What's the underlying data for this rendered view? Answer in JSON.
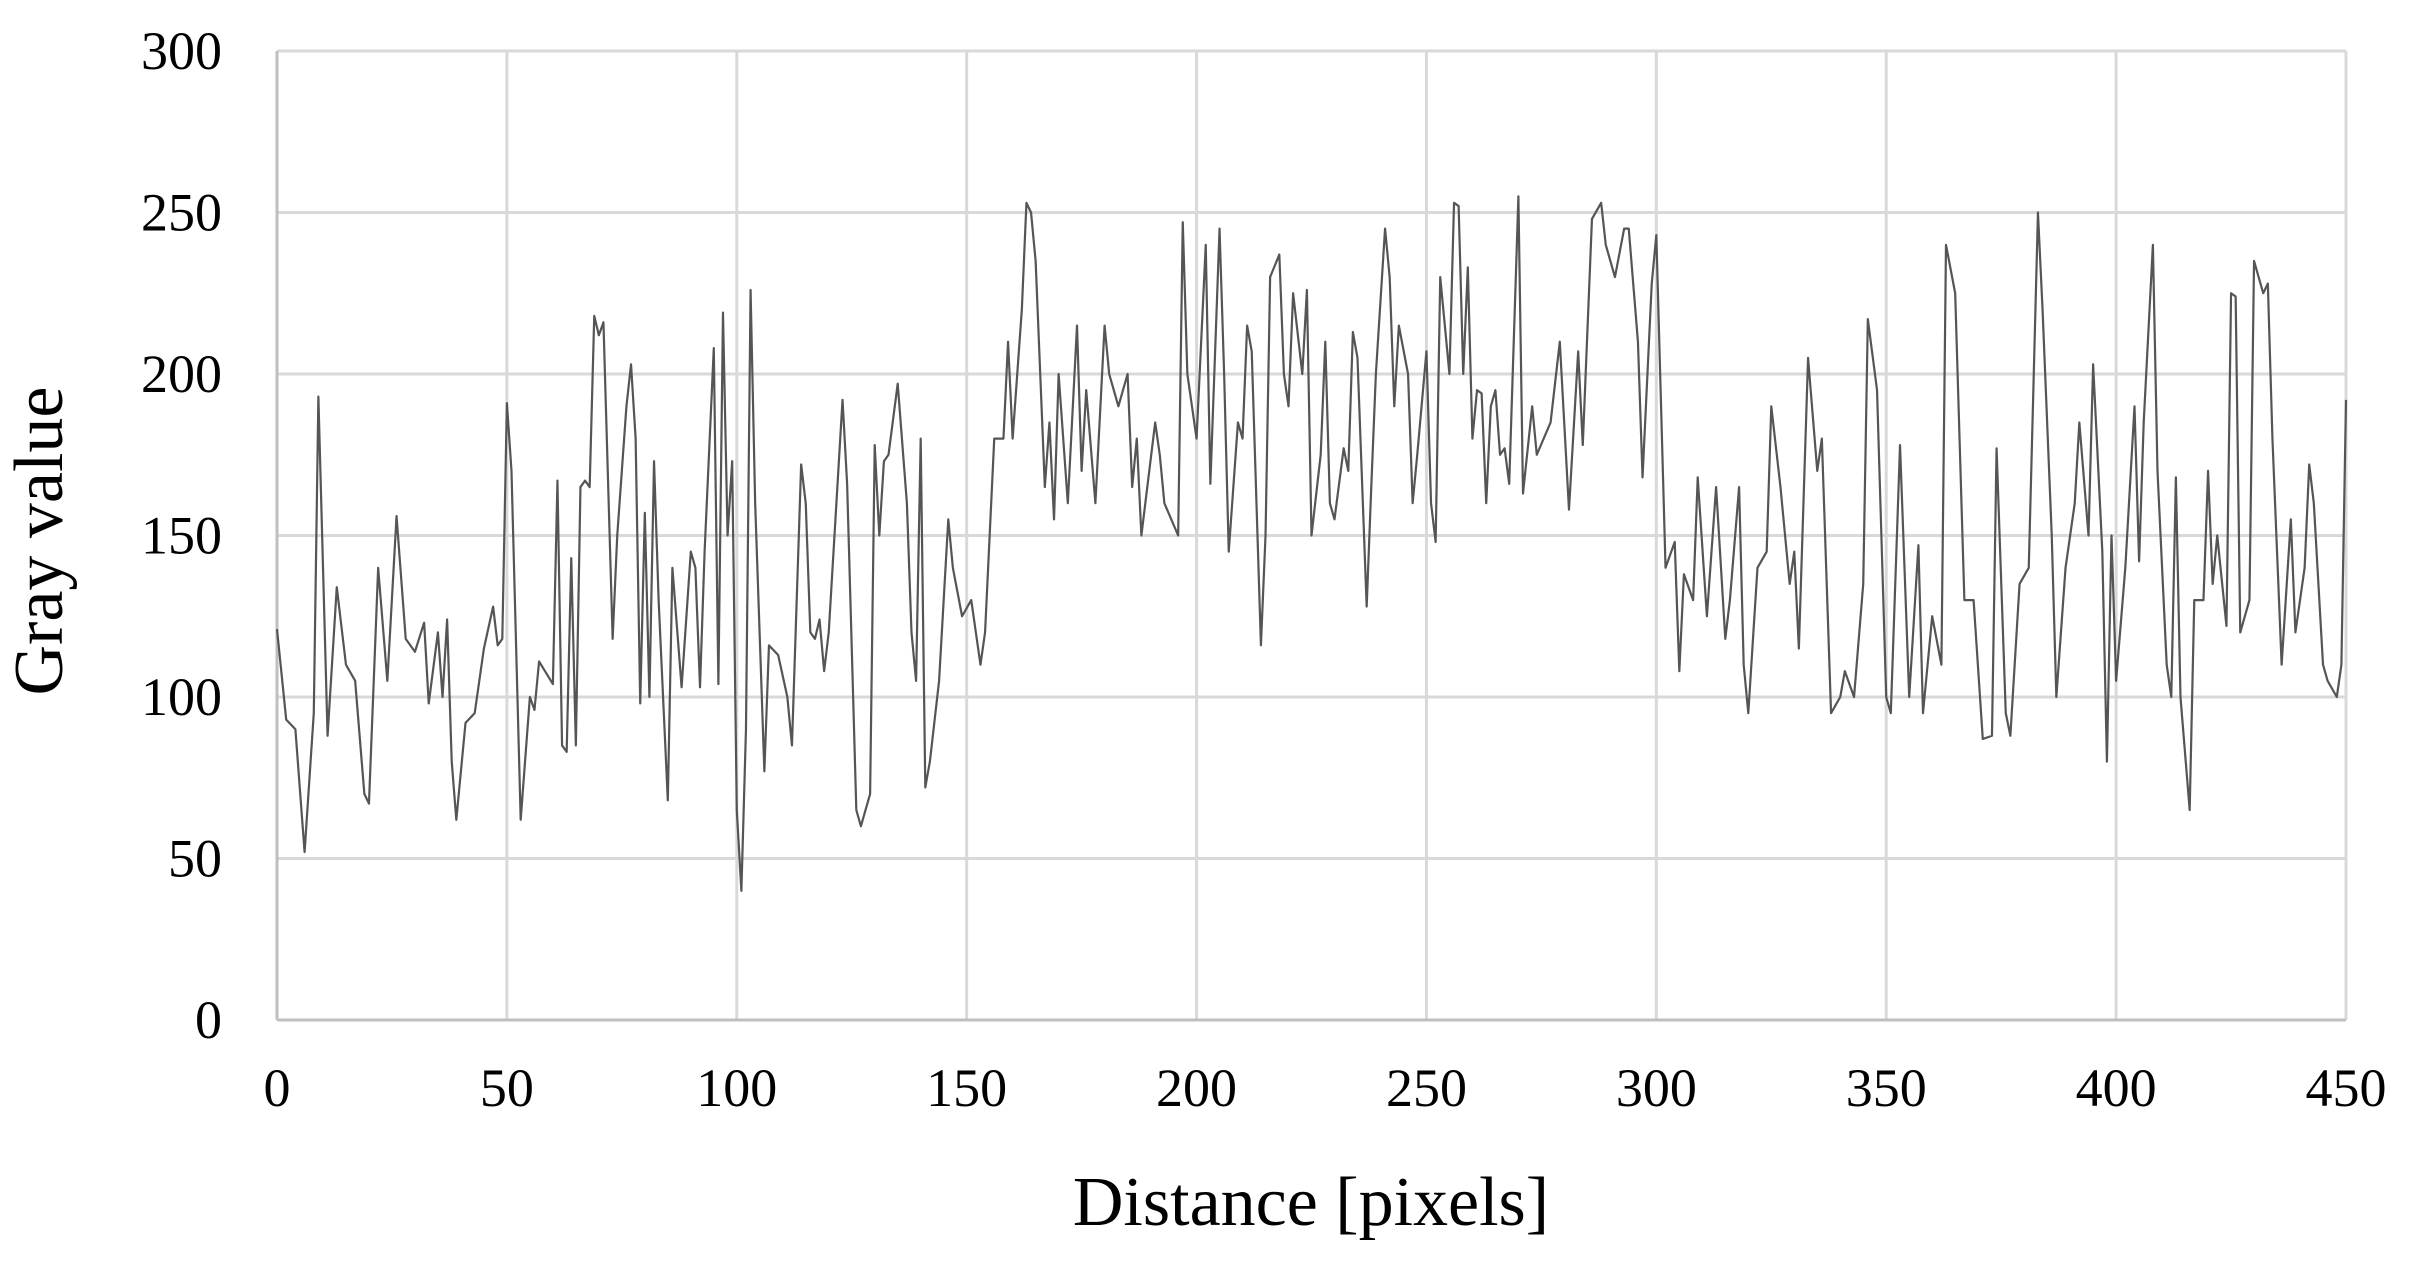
{
  "chart_data": {
    "type": "line",
    "xlabel": "Distance [pixels]",
    "ylabel": "Gray value",
    "color": "#555555",
    "grid": true,
    "xlim": [
      0,
      450
    ],
    "xticks": [
      0,
      50,
      100,
      150,
      200,
      250,
      300,
      350,
      400,
      450
    ],
    "ylim": [
      0,
      300
    ],
    "yticks": [
      0,
      50,
      100,
      150,
      200,
      250,
      300
    ],
    "x": [
      0,
      2,
      4,
      6,
      8,
      9,
      11,
      13,
      15,
      17,
      19,
      20,
      22,
      24,
      26,
      28,
      30,
      32,
      33,
      35,
      36,
      37,
      38,
      39,
      41,
      43,
      45,
      47,
      48,
      49,
      50,
      51,
      53,
      55,
      56,
      57,
      60,
      61,
      62,
      63,
      64,
      65,
      66,
      67,
      68,
      69,
      70,
      71,
      73,
      74,
      76,
      77,
      78,
      79,
      80,
      81,
      82,
      83,
      85,
      86,
      88,
      90,
      91,
      92,
      93,
      95,
      96,
      97,
      98,
      99,
      100,
      101,
      102,
      103,
      104,
      106,
      107,
      109,
      111,
      112,
      114,
      115,
      116,
      117,
      118,
      119,
      120,
      123,
      124,
      126,
      127,
      129,
      130,
      131,
      132,
      133,
      135,
      137,
      138,
      139,
      140,
      141,
      142,
      144,
      146,
      147,
      149,
      151,
      153,
      154,
      156,
      158,
      159,
      160,
      162,
      163,
      164,
      165,
      167,
      168,
      169,
      170,
      172,
      174,
      175,
      176,
      178,
      180,
      181,
      183,
      185,
      186,
      187,
      188,
      191,
      192,
      193,
      196,
      197,
      198,
      200,
      202,
      203,
      205,
      206,
      207,
      209,
      210,
      211,
      212,
      214,
      215,
      216,
      218,
      219,
      220,
      221,
      223,
      224,
      225,
      227,
      228,
      229,
      230,
      232,
      233,
      234,
      235,
      237,
      238,
      239,
      241,
      242,
      243,
      244,
      246,
      247,
      248,
      250,
      251,
      252,
      253,
      255,
      256,
      257,
      258,
      259,
      260,
      261,
      262,
      263,
      264,
      265,
      266,
      267,
      268,
      270,
      271,
      273,
      274,
      277,
      279,
      281,
      283,
      284,
      286,
      288,
      289,
      291,
      293,
      294,
      296,
      297,
      299,
      300,
      302,
      304,
      305,
      306,
      308,
      309,
      311,
      313,
      315,
      316,
      318,
      319,
      320,
      322,
      324,
      325,
      327,
      329,
      330,
      331,
      333,
      335,
      336,
      338,
      340,
      341,
      343,
      345,
      346,
      348,
      350,
      351,
      353,
      355,
      357,
      358,
      360,
      362,
      363,
      365,
      367,
      369,
      371,
      373,
      374,
      376,
      377,
      379,
      381,
      383,
      384,
      386,
      387,
      389,
      391,
      392,
      394,
      395,
      397,
      398,
      399,
      400,
      402,
      404,
      405,
      406,
      408,
      409,
      411,
      412,
      413,
      414,
      416,
      417,
      419,
      420,
      421,
      422,
      424,
      425,
      426,
      427,
      429,
      430,
      432,
      433,
      434,
      436,
      438,
      439,
      441,
      442,
      443,
      445,
      446,
      448,
      449,
      450
    ],
    "values": [
      121,
      93,
      90,
      52,
      95,
      193,
      88,
      134,
      110,
      105,
      70,
      67,
      140,
      105,
      156,
      118,
      114,
      123,
      98,
      120,
      100,
      124,
      80,
      62,
      92,
      95,
      115,
      128,
      116,
      118,
      191,
      170,
      62,
      100,
      96,
      111,
      104,
      167,
      85,
      83,
      143,
      85,
      165,
      167,
      165,
      218,
      212,
      216,
      118,
      150,
      190,
      203,
      180,
      98,
      157,
      100,
      173,
      130,
      68,
      140,
      103,
      145,
      140,
      103,
      145,
      208,
      104,
      219,
      150,
      173,
      65,
      40,
      90,
      226,
      160,
      77,
      116,
      113,
      100,
      85,
      172,
      160,
      120,
      118,
      124,
      108,
      120,
      192,
      166,
      65,
      60,
      70,
      178,
      150,
      173,
      175,
      197,
      160,
      120,
      105,
      180,
      72,
      80,
      105,
      155,
      140,
      125,
      130,
      110,
      120,
      180,
      180,
      210,
      180,
      220,
      253,
      250,
      235,
      165,
      185,
      155,
      200,
      160,
      215,
      170,
      195,
      160,
      215,
      200,
      190,
      200,
      165,
      180,
      150,
      185,
      175,
      160,
      150,
      247,
      200,
      180,
      240,
      166,
      245,
      200,
      145,
      185,
      180,
      215,
      207,
      116,
      150,
      230,
      237,
      200,
      190,
      225,
      200,
      226,
      150,
      175,
      210,
      160,
      155,
      177,
      170,
      213,
      205,
      128,
      165,
      200,
      245,
      230,
      190,
      215,
      200,
      160,
      175,
      207,
      160,
      148,
      230,
      200,
      253,
      252,
      200,
      233,
      180,
      195,
      194,
      160,
      190,
      195,
      175,
      177,
      166,
      255,
      163,
      190,
      175,
      185,
      210,
      158,
      207,
      178,
      248,
      253,
      240,
      230,
      245,
      245,
      210,
      168,
      228,
      243,
      140,
      148,
      108,
      138,
      130,
      168,
      125,
      165,
      118,
      130,
      165,
      110,
      95,
      140,
      145,
      190,
      165,
      135,
      145,
      115,
      205,
      170,
      180,
      95,
      100,
      108,
      100,
      135,
      217,
      195,
      100,
      95,
      178,
      100,
      147,
      95,
      125,
      110,
      240,
      225,
      130,
      130,
      87,
      88,
      177,
      95,
      88,
      135,
      140,
      250,
      220,
      150,
      100,
      140,
      160,
      185,
      150,
      203,
      145,
      80,
      150,
      105,
      140,
      190,
      142,
      185,
      240,
      170,
      110,
      100,
      168,
      100,
      65,
      130,
      130,
      170,
      135,
      150,
      122,
      225,
      224,
      120,
      130,
      235,
      225,
      228,
      180,
      110,
      155,
      120,
      140,
      172,
      160,
      110,
      105,
      100,
      110,
      192
    ]
  }
}
